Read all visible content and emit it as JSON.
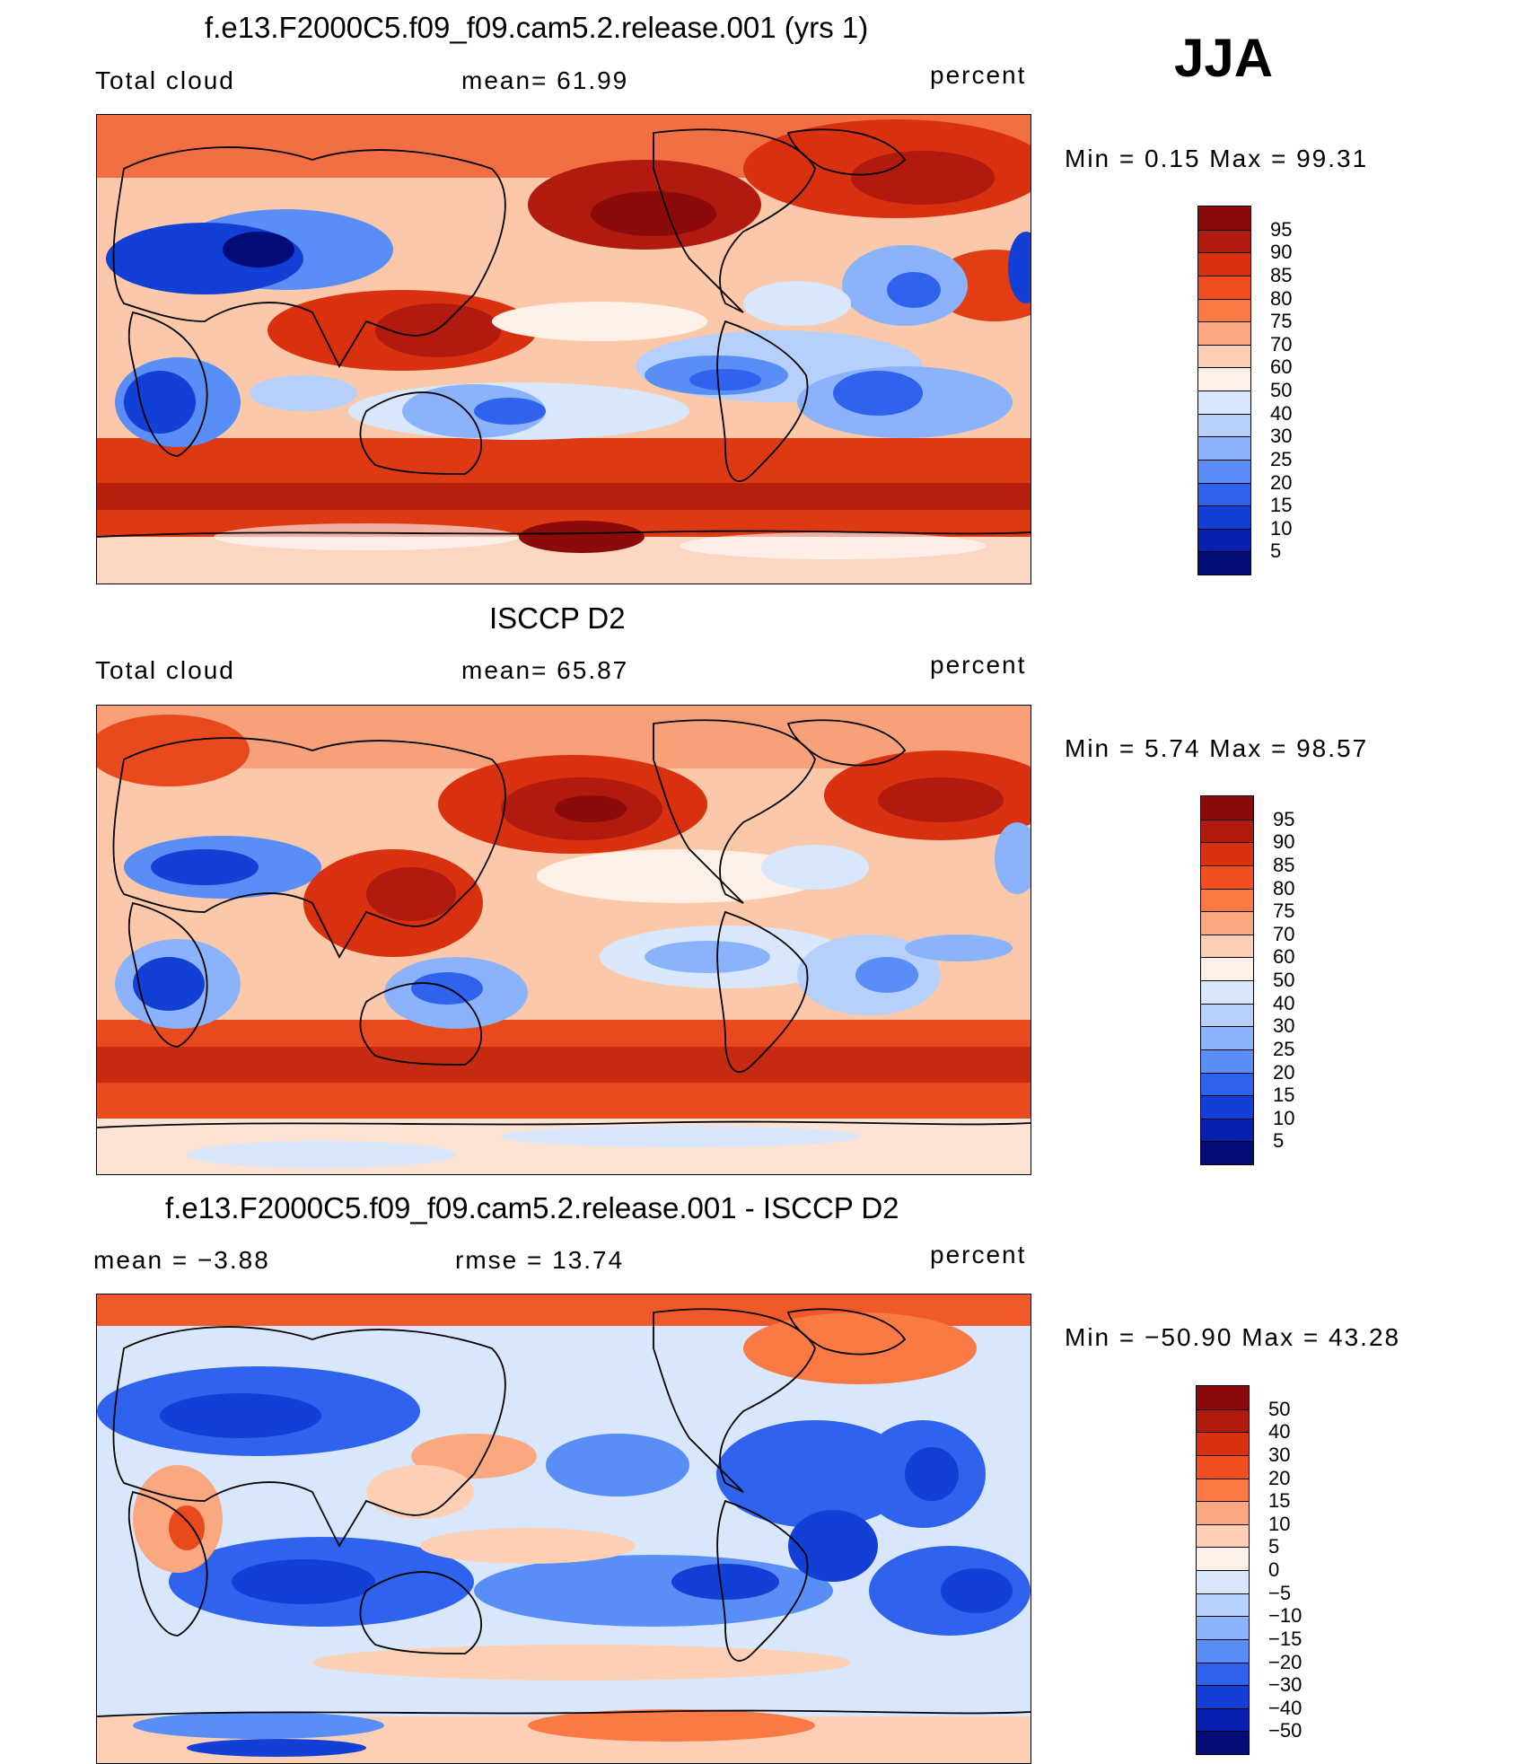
{
  "season": "JJA",
  "panels": [
    {
      "title": "f.e13.F2000C5.f09_f09.cam5.2.release.001 (yrs 1)",
      "left_label": "Total cloud",
      "mid_label": "mean=   61.99",
      "right_label": "percent",
      "minmax": "Min  =    0.15  Max  =    99.31",
      "min": 0.15,
      "max": 99.31,
      "mean": 61.99,
      "map_type": "absolute"
    },
    {
      "title": "ISCCP D2",
      "left_label": "Total cloud",
      "mid_label": "mean=   65.87",
      "right_label": "percent",
      "minmax": "Min  =    5.74  Max  =    98.57",
      "min": 5.74,
      "max": 98.57,
      "mean": 65.87,
      "map_type": "absolute"
    },
    {
      "title": "f.e13.F2000C5.f09_f09.cam5.2.release.001 - ISCCP D2",
      "left_label": "mean  =    −3.88",
      "mid_label": "rmse  =    13.74",
      "right_label": "percent",
      "minmax": "Min  = −50.90  Max  =    43.28",
      "min": -50.9,
      "max": 43.28,
      "mean": -3.88,
      "rmse": 13.74,
      "map_type": "difference"
    }
  ],
  "colorbars": {
    "absolute": {
      "labels": [
        "95",
        "90",
        "85",
        "80",
        "75",
        "70",
        "60",
        "50",
        "40",
        "30",
        "25",
        "20",
        "15",
        "10",
        "5"
      ],
      "colors": [
        "#8b0a0a",
        "#b11a0e",
        "#d9300f",
        "#f24e1f",
        "#f97a45",
        "#fba77f",
        "#fdd0b5",
        "#fdf0e6",
        "#d8e7fb",
        "#b7d0fb",
        "#8bb3fb",
        "#5a8ef7",
        "#2f63ee",
        "#1240d6",
        "#0820b0",
        "#040c78"
      ]
    },
    "difference": {
      "labels": [
        "50",
        "40",
        "30",
        "20",
        "15",
        "10",
        "5",
        "0",
        "−5",
        "−10",
        "−15",
        "−20",
        "−30",
        "−40",
        "−50"
      ],
      "colors": [
        "#8b0a0a",
        "#b11a0e",
        "#d9300f",
        "#f24e1f",
        "#f97a45",
        "#fba77f",
        "#fdd0b5",
        "#fdf0e6",
        "#d8e7fb",
        "#b7d0fb",
        "#8bb3fb",
        "#5a8ef7",
        "#2f63ee",
        "#1240d6",
        "#0820b0",
        "#040c78"
      ]
    }
  }
}
